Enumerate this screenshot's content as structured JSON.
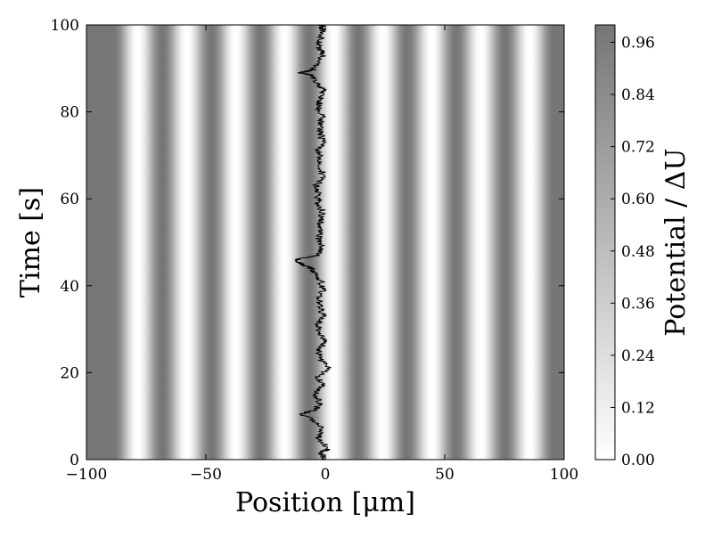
{
  "chart_data": {
    "type": "heatmap",
    "title": "",
    "xlabel": "Position [μm]",
    "ylabel": "Time [s]",
    "xlim": [
      -100,
      100
    ],
    "ylim": [
      0,
      100
    ],
    "x_ticks": [
      -100,
      -50,
      0,
      50,
      100
    ],
    "x_tick_labels": [
      "−100",
      "−50",
      "0",
      "50",
      "100"
    ],
    "y_ticks": [
      0,
      20,
      40,
      60,
      80,
      100
    ],
    "y_tick_labels": [
      "0",
      "20",
      "40",
      "60",
      "80",
      "100"
    ],
    "grid": false,
    "colormap": "gray_r",
    "heatmap": {
      "description_values": "potential normalized by ΔU, periodic in position, constant in time",
      "potential_period_um": 20.5,
      "minima_positions_um": [
        -78.5,
        -58,
        -37.5,
        -17,
        3.5,
        24,
        44.5,
        65,
        85.5
      ]
    },
    "colorbar": {
      "label": "Potential / ΔU",
      "vmin": 0.0,
      "vmax": 1.0,
      "ticks": [
        0.0,
        0.12,
        0.24,
        0.36,
        0.48,
        0.6,
        0.72,
        0.84,
        0.96
      ],
      "tick_labels": [
        "0.00",
        "0.12",
        "0.24",
        "0.36",
        "0.48",
        "0.60",
        "0.72",
        "0.84",
        "0.96"
      ],
      "levels": 50
    },
    "series": [
      {
        "type": "trajectory",
        "color": "#000000",
        "points": [
          [
            0,
            0
          ],
          [
            1.5,
            -2
          ],
          [
            2.5,
            1
          ],
          [
            5,
            -3
          ],
          [
            7,
            -1
          ],
          [
            9,
            -5
          ],
          [
            10.5,
            -10
          ],
          [
            11.5,
            -4
          ],
          [
            13,
            -2
          ],
          [
            15,
            -4
          ],
          [
            17,
            -1
          ],
          [
            19,
            -3
          ],
          [
            21,
            1
          ],
          [
            23,
            -2
          ],
          [
            25,
            -3
          ],
          [
            27,
            0
          ],
          [
            29,
            -2
          ],
          [
            31,
            -3
          ],
          [
            33,
            -1
          ],
          [
            35,
            -2
          ],
          [
            37,
            -3
          ],
          [
            39,
            -1
          ],
          [
            41,
            -2
          ],
          [
            43,
            -4
          ],
          [
            44,
            -6
          ],
          [
            45,
            -10
          ],
          [
            46,
            -12
          ],
          [
            46.5,
            -8
          ],
          [
            47,
            -3
          ],
          [
            49,
            -1
          ],
          [
            51,
            -3
          ],
          [
            53,
            -2
          ],
          [
            55,
            -2
          ],
          [
            57,
            -1
          ],
          [
            59,
            -3
          ],
          [
            61,
            -3
          ],
          [
            63,
            -4
          ],
          [
            65,
            -1
          ],
          [
            67,
            -2
          ],
          [
            69,
            -2
          ],
          [
            71,
            -3
          ],
          [
            73,
            -1
          ],
          [
            75,
            -2
          ],
          [
            77,
            -2
          ],
          [
            79,
            -1
          ],
          [
            81,
            -3
          ],
          [
            83,
            -2
          ],
          [
            85,
            -1
          ],
          [
            87,
            -4
          ],
          [
            88.5,
            -6
          ],
          [
            89,
            -11
          ],
          [
            89.5,
            -6
          ],
          [
            91,
            -3
          ],
          [
            93,
            -1
          ],
          [
            95,
            -3
          ],
          [
            97,
            -2
          ],
          [
            99,
            -1
          ],
          [
            100,
            -2
          ]
        ]
      }
    ]
  }
}
